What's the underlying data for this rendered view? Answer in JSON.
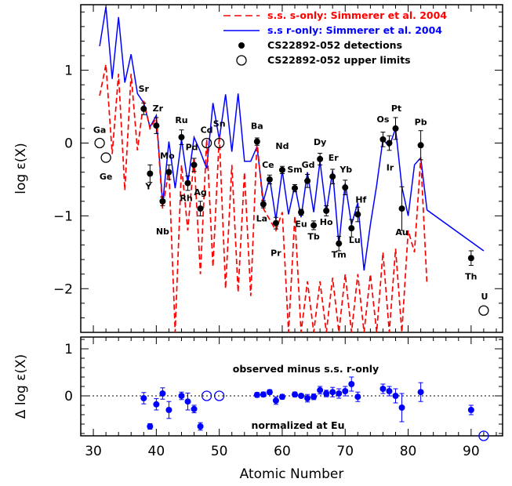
{
  "chart_data": [
    {
      "type": "line",
      "panel": "top",
      "xlim": [
        28,
        95
      ],
      "ylim": [
        -2.6,
        1.9
      ],
      "ylabel": "log ε(X)",
      "yticks": [
        -2,
        -1,
        0,
        1
      ],
      "y_tick_labels": [
        "−2",
        "−1",
        "0",
        "1"
      ],
      "legend": {
        "placement": "top-right",
        "s_only": "s.s. s-only: Simmerer et al. 2004",
        "r_only": "s.s r-only: Simmerer et al. 2004",
        "detections": "CS22892-052 detections",
        "upper_limits": "CS22892-052 upper limits"
      },
      "colors": {
        "s_only": "#ff0000",
        "r_only": "#0000ff",
        "points": "#000000"
      },
      "series": [
        {
          "name": "s.s r-only: Simmerer et al. 2004",
          "style": "solid",
          "x": [
            31,
            32,
            33,
            34,
            35,
            36,
            37,
            38,
            39,
            40,
            41,
            42,
            43,
            44,
            45,
            46,
            47,
            48,
            49,
            50,
            51,
            52,
            53,
            54,
            55,
            56,
            57,
            58,
            59,
            60,
            61,
            62,
            63,
            64,
            65,
            66,
            67,
            68,
            69,
            70,
            71,
            72,
            73,
            74,
            75,
            76,
            77,
            78,
            79,
            80,
            81,
            82,
            83,
            92
          ],
          "y": [
            1.33,
            1.87,
            0.88,
            1.73,
            0.83,
            1.22,
            0.68,
            0.55,
            0.22,
            0.38,
            -0.83,
            0.02,
            -0.62,
            0.05,
            -0.55,
            0.08,
            -0.12,
            -0.35,
            0.55,
            0.05,
            0.67,
            -0.12,
            0.68,
            -0.25,
            -0.25,
            -0.05,
            -0.8,
            -0.48,
            -1.05,
            -0.38,
            -0.98,
            -0.58,
            -1.02,
            -0.4,
            -0.95,
            -0.25,
            -0.95,
            -0.38,
            -1.4,
            -0.55,
            -1.12,
            -0.82,
            -1.75,
            -1.12,
            -0.58,
            0.05,
            -0.05,
            0.2,
            -0.6,
            -1.0,
            -0.3,
            -0.2,
            -0.92,
            -1.48
          ]
        },
        {
          "name": "s.s. s-only: Simmerer et al. 2004",
          "style": "dashed",
          "x": [
            31,
            32,
            33,
            34,
            35,
            36,
            37,
            38,
            39,
            40,
            41,
            42,
            43,
            44,
            45,
            46,
            47,
            48,
            49,
            50,
            51,
            52,
            53,
            54,
            55,
            56,
            57,
            58,
            59,
            60,
            61,
            62,
            63,
            64,
            65,
            66,
            67,
            68,
            69,
            70,
            71,
            72,
            73,
            74,
            75,
            76,
            77,
            78,
            79,
            80,
            81,
            82,
            83
          ],
          "y": [
            0.65,
            1.08,
            -0.15,
            0.95,
            -0.65,
            0.95,
            -0.1,
            0.58,
            0.2,
            0.35,
            -0.9,
            -0.35,
            -2.6,
            -0.3,
            -1.2,
            -0.2,
            -1.8,
            0.05,
            -1.7,
            0.1,
            -2.0,
            -0.3,
            -2.05,
            -0.4,
            -2.1,
            0.03,
            -0.9,
            -1.05,
            -1.2,
            -0.95,
            -2.6,
            -1.0,
            -2.6,
            -1.9,
            -2.6,
            -1.9,
            -2.6,
            -1.85,
            -2.6,
            -1.8,
            -2.6,
            -1.8,
            -2.6,
            -1.8,
            -2.6,
            -1.5,
            -2.6,
            -1.45,
            -2.6,
            -1.2,
            -1.5,
            -0.2,
            -1.95
          ]
        }
      ],
      "detections": [
        {
          "el": "Sr",
          "z": 38,
          "y": 0.47,
          "err": 0.08
        },
        {
          "el": "Y",
          "z": 39,
          "y": -0.42,
          "err": 0.12
        },
        {
          "el": "Zr",
          "z": 40,
          "y": 0.24,
          "err": 0.11
        },
        {
          "el": "Nb",
          "z": 41,
          "y": -0.8,
          "err": 0.06
        },
        {
          "el": "Mo",
          "z": 42,
          "y": -0.4,
          "err": 0.1
        },
        {
          "el": "Ru",
          "z": 44,
          "y": 0.08,
          "err": 0.1
        },
        {
          "el": "Rh",
          "z": 45,
          "y": -0.55,
          "err": 0.1
        },
        {
          "el": "Pd",
          "z": 46,
          "y": -0.3,
          "err": 0.09
        },
        {
          "el": "Ag",
          "z": 47,
          "y": -0.9,
          "err": 0.1
        },
        {
          "el": "Ba",
          "z": 56,
          "y": 0.02,
          "err": 0.05
        },
        {
          "el": "La",
          "z": 57,
          "y": -0.84,
          "err": 0.05
        },
        {
          "el": "Ce",
          "z": 58,
          "y": -0.5,
          "err": 0.06
        },
        {
          "el": "Pr",
          "z": 59,
          "y": -1.1,
          "err": 0.08
        },
        {
          "el": "Nd",
          "z": 60,
          "y": -0.37,
          "err": 0.05
        },
        {
          "el": "Sm",
          "z": 62,
          "y": -0.62,
          "err": 0.05
        },
        {
          "el": "Eu",
          "z": 63,
          "y": -0.95,
          "err": 0.04
        },
        {
          "el": "Gd",
          "z": 64,
          "y": -0.52,
          "err": 0.09
        },
        {
          "el": "Tb",
          "z": 65,
          "y": -1.13,
          "err": 0.06
        },
        {
          "el": "Dy",
          "z": 66,
          "y": -0.22,
          "err": 0.08
        },
        {
          "el": "Ho",
          "z": 67,
          "y": -0.93,
          "err": 0.07
        },
        {
          "el": "Er",
          "z": 68,
          "y": -0.46,
          "err": 0.1
        },
        {
          "el": "Tm",
          "z": 69,
          "y": -1.38,
          "err": 0.1
        },
        {
          "el": "Yb",
          "z": 70,
          "y": -0.61,
          "err": 0.1
        },
        {
          "el": "Lu",
          "z": 71,
          "y": -1.17,
          "err": 0.12
        },
        {
          "el": "Hf",
          "z": 72,
          "y": -0.98,
          "err": 0.1
        },
        {
          "el": "Os",
          "z": 76,
          "y": 0.05,
          "err": 0.1
        },
        {
          "el": "Ir",
          "z": 77,
          "y": 0.0,
          "err": 0.1
        },
        {
          "el": "Pt",
          "z": 78,
          "y": 0.2,
          "err": 0.15
        },
        {
          "el": "Au",
          "z": 79,
          "y": -0.9,
          "err": 0.3
        },
        {
          "el": "Pb",
          "z": 82,
          "y": -0.03,
          "err": 0.2
        },
        {
          "el": "Th",
          "z": 90,
          "y": -1.58,
          "err": 0.1
        }
      ],
      "upper_limits": [
        {
          "el": "Ga",
          "z": 31,
          "y": 0.0
        },
        {
          "el": "Ge",
          "z": 32,
          "y": -0.2
        },
        {
          "el": "Cd",
          "z": 48,
          "y": 0.0
        },
        {
          "el": "Sn",
          "z": 50,
          "y": 0.0
        },
        {
          "el": "U",
          "z": 92,
          "y": -2.3
        }
      ]
    },
    {
      "type": "scatter",
      "panel": "bottom",
      "xlim": [
        28,
        95
      ],
      "ylim": [
        -0.85,
        1.25
      ],
      "xlabel": "Atomic Number",
      "ylabel": "Δ log ε(X)",
      "xticks": [
        30,
        40,
        50,
        60,
        70,
        80,
        90
      ],
      "x_tick_labels": [
        "30",
        "40",
        "50",
        "60",
        "70",
        "80",
        "90"
      ],
      "yticks": [
        0,
        1
      ],
      "y_tick_labels": [
        "0",
        "1"
      ],
      "note_top": "observed minus s.s. r-only",
      "note_bottom": "normalized at Eu",
      "color": "#0000ff",
      "detections": [
        {
          "z": 38,
          "y": -0.05,
          "err": 0.12
        },
        {
          "z": 39,
          "y": -0.65,
          "err": 0.06
        },
        {
          "z": 40,
          "y": -0.18,
          "err": 0.12
        },
        {
          "z": 41,
          "y": 0.05,
          "err": 0.12
        },
        {
          "z": 42,
          "y": -0.3,
          "err": 0.18
        },
        {
          "z": 44,
          "y": 0.0,
          "err": 0.08
        },
        {
          "z": 45,
          "y": -0.12,
          "err": 0.18
        },
        {
          "z": 46,
          "y": -0.28,
          "err": 0.08
        },
        {
          "z": 47,
          "y": -0.65,
          "err": 0.08
        },
        {
          "z": 56,
          "y": 0.02,
          "err": 0.05
        },
        {
          "z": 57,
          "y": 0.03,
          "err": 0.05
        },
        {
          "z": 58,
          "y": 0.08,
          "err": 0.05
        },
        {
          "z": 59,
          "y": -0.1,
          "err": 0.08
        },
        {
          "z": 60,
          "y": -0.02,
          "err": 0.05
        },
        {
          "z": 62,
          "y": 0.03,
          "err": 0.05
        },
        {
          "z": 63,
          "y": 0.0,
          "err": 0.04
        },
        {
          "z": 64,
          "y": -0.05,
          "err": 0.08
        },
        {
          "z": 65,
          "y": -0.02,
          "err": 0.06
        },
        {
          "z": 66,
          "y": 0.12,
          "err": 0.08
        },
        {
          "z": 67,
          "y": 0.05,
          "err": 0.07
        },
        {
          "z": 68,
          "y": 0.08,
          "err": 0.1
        },
        {
          "z": 69,
          "y": 0.05,
          "err": 0.1
        },
        {
          "z": 70,
          "y": 0.1,
          "err": 0.1
        },
        {
          "z": 71,
          "y": 0.25,
          "err": 0.15
        },
        {
          "z": 72,
          "y": -0.02,
          "err": 0.1
        },
        {
          "z": 76,
          "y": 0.15,
          "err": 0.1
        },
        {
          "z": 77,
          "y": 0.1,
          "err": 0.1
        },
        {
          "z": 78,
          "y": 0.0,
          "err": 0.15
        },
        {
          "z": 79,
          "y": -0.25,
          "err": 0.3
        },
        {
          "z": 82,
          "y": 0.08,
          "err": 0.2
        },
        {
          "z": 90,
          "y": -0.3,
          "err": 0.1
        }
      ],
      "upper_limits": [
        {
          "z": 48,
          "y": 0.0
        },
        {
          "z": 50,
          "y": 0.0
        },
        {
          "z": 92,
          "y": -0.85
        }
      ]
    }
  ]
}
